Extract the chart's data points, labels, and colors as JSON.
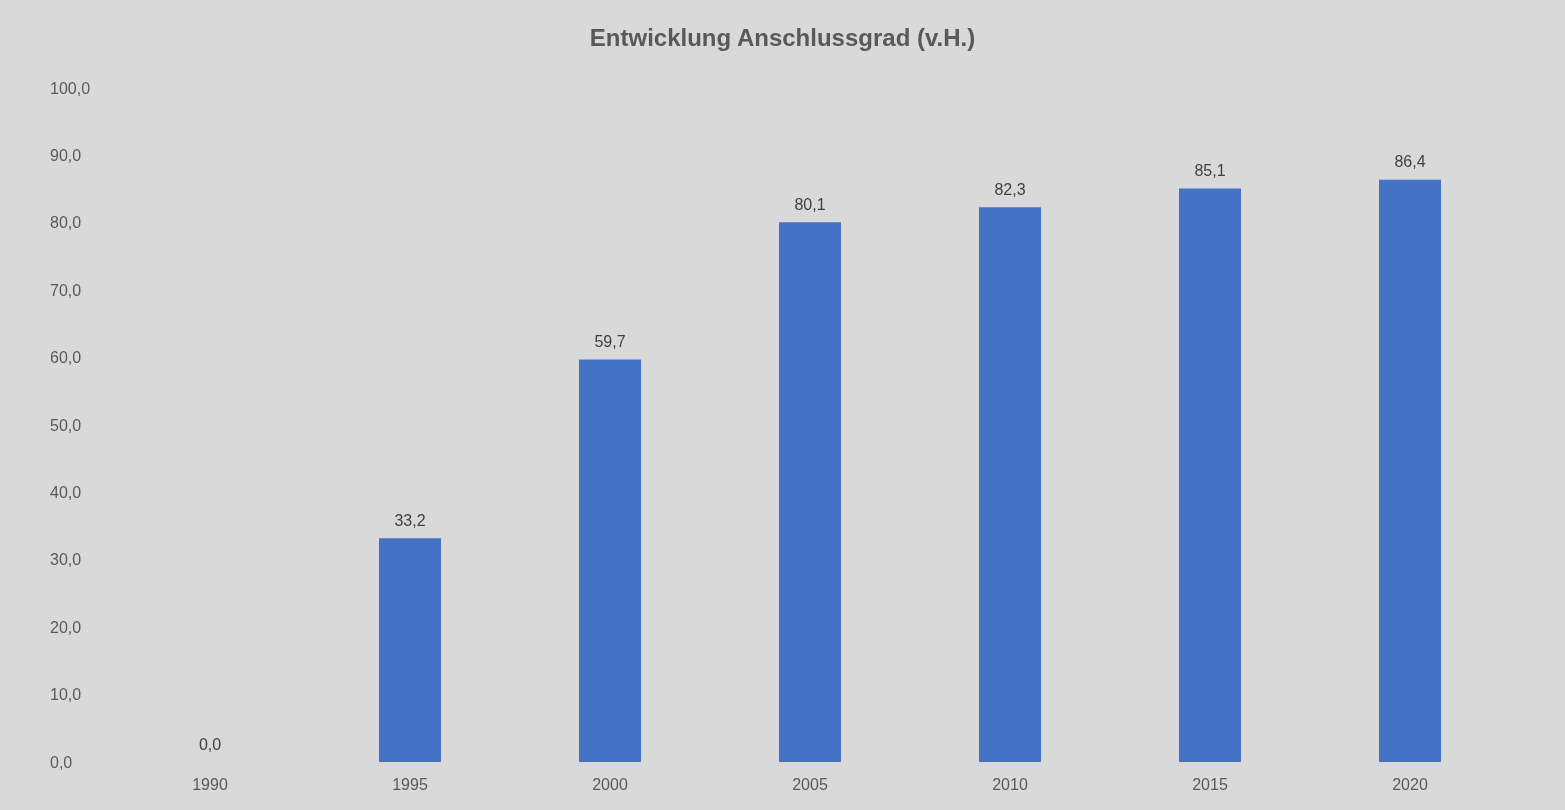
{
  "chart_data": {
    "type": "bar",
    "title": "Entwicklung Anschlussgrad (v.H.)",
    "categories": [
      "1990",
      "1995",
      "2000",
      "2005",
      "2010",
      "2015",
      "2020"
    ],
    "values": [
      0.0,
      33.2,
      59.7,
      80.1,
      82.3,
      85.1,
      86.4
    ],
    "value_labels": [
      "0,0",
      "33,2",
      "59,7",
      "80,1",
      "82,3",
      "85,1",
      "86,4"
    ],
    "color": "#4472c4",
    "ylim": [
      0,
      100
    ],
    "yticks": [
      {
        "value": 0,
        "label": "0,0"
      },
      {
        "value": 10,
        "label": "10,0"
      },
      {
        "value": 20,
        "label": "20,0"
      },
      {
        "value": 30,
        "label": "30,0"
      },
      {
        "value": 40,
        "label": "40,0"
      },
      {
        "value": 50,
        "label": "50,0"
      },
      {
        "value": 60,
        "label": "60,0"
      },
      {
        "value": 70,
        "label": "70,0"
      },
      {
        "value": 80,
        "label": "80,0"
      },
      {
        "value": 90,
        "label": "90,0"
      },
      {
        "value": 100,
        "label": "100,0"
      }
    ],
    "grid": false
  }
}
